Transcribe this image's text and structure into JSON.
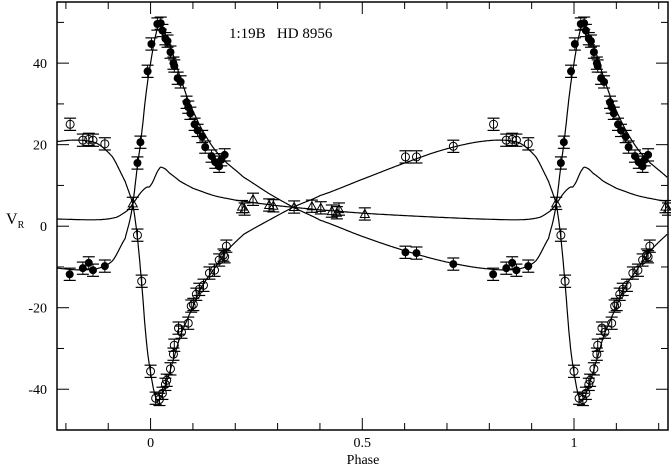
{
  "chart_data": {
    "type": "scatter",
    "title": "1:19B   HD 8956",
    "xlabel": "Phase",
    "ylabel": "V",
    "ylabel_sub": "R",
    "xlim": [
      -0.221,
      1.222
    ],
    "ylim": [
      -50,
      55
    ],
    "x_ticks": [
      0,
      0.5,
      1
    ],
    "x_tick_labels": [
      "0",
      "0.5",
      "1"
    ],
    "x_minor_step": 0.1,
    "y_ticks": [
      -40,
      -20,
      0,
      20,
      40
    ],
    "y_tick_labels": [
      "-40",
      "-20",
      "0",
      "20",
      "40"
    ],
    "y_minor_step": 10,
    "grid": false,
    "legend": "none",
    "phase_wrapped": true,
    "error_bar": 1.5,
    "series": [
      {
        "marker": "filled-circle",
        "color": "#000000",
        "points": [
          [
            0.969,
            15.5
          ],
          [
            0.976,
            20.6
          ],
          [
            0.993,
            38
          ],
          [
            0.002,
            44.7
          ],
          [
            0.016,
            49.6
          ],
          [
            0.024,
            49.8
          ],
          [
            0.028,
            48
          ],
          [
            0.035,
            46
          ],
          [
            0.04,
            45.4
          ],
          [
            0.047,
            42.7
          ],
          [
            0.054,
            40
          ],
          [
            0.056,
            39.3
          ],
          [
            0.064,
            36.3
          ],
          [
            0.071,
            35.4
          ],
          [
            0.085,
            30.4
          ],
          [
            0.089,
            29.2
          ],
          [
            0.094,
            27.7
          ],
          [
            0.104,
            25
          ],
          [
            0.111,
            23.5
          ],
          [
            0.122,
            22
          ],
          [
            0.129,
            19.4
          ],
          [
            0.144,
            17.2
          ],
          [
            0.153,
            15.7
          ],
          [
            0.162,
            14.7
          ],
          [
            0.167,
            16.3
          ],
          [
            0.175,
            17.5
          ],
          [
            0.602,
            -6.4
          ],
          [
            0.628,
            -6.6
          ],
          [
            0.715,
            -9.3
          ],
          [
            0.809,
            -11.8
          ],
          [
            0.84,
            -10.3
          ],
          [
            0.854,
            -9
          ],
          [
            0.864,
            -10.8
          ],
          [
            0.892,
            -9.8
          ]
        ],
        "model": [
          [
            0.0,
            40
          ],
          [
            0.01,
            46
          ],
          [
            0.022,
            50
          ],
          [
            0.035,
            47
          ],
          [
            0.05,
            43
          ],
          [
            0.07,
            36.5
          ],
          [
            0.09,
            30.5
          ],
          [
            0.12,
            24
          ],
          [
            0.15,
            19
          ],
          [
            0.18,
            15.5
          ],
          [
            0.22,
            12
          ],
          [
            0.28,
            8
          ],
          [
            0.34,
            4.5
          ],
          [
            0.4,
            1.5
          ],
          [
            0.5,
            -2.5
          ],
          [
            0.6,
            -6
          ],
          [
            0.7,
            -8.8
          ],
          [
            0.8,
            -10.5
          ],
          [
            0.87,
            -10.5
          ],
          [
            0.91,
            -8.5
          ],
          [
            0.94,
            -3
          ],
          [
            0.95,
            1
          ],
          [
            0.958,
            5.5
          ],
          [
            0.968,
            14
          ],
          [
            0.978,
            22
          ],
          [
            0.99,
            33
          ]
        ]
      },
      {
        "marker": "open-circle",
        "color": "#000000",
        "points": [
          [
            0.81,
            25
          ],
          [
            0.84,
            21.1
          ],
          [
            0.854,
            21.3
          ],
          [
            0.864,
            21.1
          ],
          [
            0.892,
            20.2
          ],
          [
            0.602,
            17
          ],
          [
            0.628,
            17
          ],
          [
            0.715,
            19.6
          ],
          [
            0.969,
            -2.2
          ],
          [
            0.979,
            -13.5
          ],
          [
            0.0,
            -35.6
          ],
          [
            0.012,
            -42.2
          ],
          [
            0.021,
            -42.5
          ],
          [
            0.028,
            -41
          ],
          [
            0.035,
            -38.8
          ],
          [
            0.038,
            -37.8
          ],
          [
            0.047,
            -35
          ],
          [
            0.054,
            -31.4
          ],
          [
            0.056,
            -29.2
          ],
          [
            0.066,
            -25
          ],
          [
            0.073,
            -26
          ],
          [
            0.089,
            -23.8
          ],
          [
            0.096,
            -19.6
          ],
          [
            0.101,
            -19.2
          ],
          [
            0.108,
            -16.7
          ],
          [
            0.115,
            -15.5
          ],
          [
            0.125,
            -14.5
          ],
          [
            0.139,
            -11.5
          ],
          [
            0.151,
            -10.8
          ],
          [
            0.162,
            -8.3
          ],
          [
            0.172,
            -7.1
          ],
          [
            0.179,
            -4.9
          ],
          [
            0.175,
            -7.5
          ]
        ],
        "model": [
          [
            0.0,
            -36
          ],
          [
            0.012,
            -42
          ],
          [
            0.022,
            -42.5
          ],
          [
            0.035,
            -39
          ],
          [
            0.05,
            -34
          ],
          [
            0.07,
            -27
          ],
          [
            0.09,
            -22
          ],
          [
            0.12,
            -15
          ],
          [
            0.15,
            -10.5
          ],
          [
            0.18,
            -6
          ],
          [
            0.22,
            -2
          ],
          [
            0.28,
            1.5
          ],
          [
            0.34,
            4.8
          ],
          [
            0.4,
            7.5
          ],
          [
            0.5,
            11.5
          ],
          [
            0.6,
            15.5
          ],
          [
            0.7,
            19
          ],
          [
            0.8,
            21
          ],
          [
            0.87,
            20.5
          ],
          [
            0.91,
            17
          ],
          [
            0.94,
            11
          ],
          [
            0.958,
            5.5
          ],
          [
            0.968,
            -2
          ],
          [
            0.978,
            -13
          ],
          [
            0.99,
            -28
          ]
        ]
      },
      {
        "marker": "open-triangle",
        "color": "#000000",
        "points": [
          [
            0.958,
            5.6
          ],
          [
            0.216,
            4.8
          ],
          [
            0.222,
            4.2
          ],
          [
            0.242,
            6.6
          ],
          [
            0.28,
            5.2
          ],
          [
            0.29,
            5.0
          ],
          [
            0.339,
            4.7
          ],
          [
            0.381,
            4.9
          ],
          [
            0.402,
            4.5
          ],
          [
            0.428,
            3.7
          ],
          [
            0.445,
            4.2
          ],
          [
            0.44,
            3.3
          ],
          [
            0.506,
            3.0
          ]
        ],
        "model": [
          [
            0.0,
            10
          ],
          [
            0.02,
            14
          ],
          [
            0.03,
            14.3
          ],
          [
            0.045,
            13
          ],
          [
            0.07,
            11
          ],
          [
            0.1,
            9.3
          ],
          [
            0.15,
            7.5
          ],
          [
            0.2,
            6.4
          ],
          [
            0.28,
            5.3
          ],
          [
            0.34,
            4.6
          ],
          [
            0.4,
            4
          ],
          [
            0.5,
            3.2
          ],
          [
            0.6,
            2.6
          ],
          [
            0.7,
            2.1
          ],
          [
            0.8,
            1.7
          ],
          [
            0.88,
            1.6
          ],
          [
            0.92,
            2.2
          ],
          [
            0.945,
            3.8
          ],
          [
            0.958,
            5.5
          ],
          [
            0.975,
            8
          ],
          [
            0.99,
            9.5
          ]
        ]
      }
    ]
  }
}
